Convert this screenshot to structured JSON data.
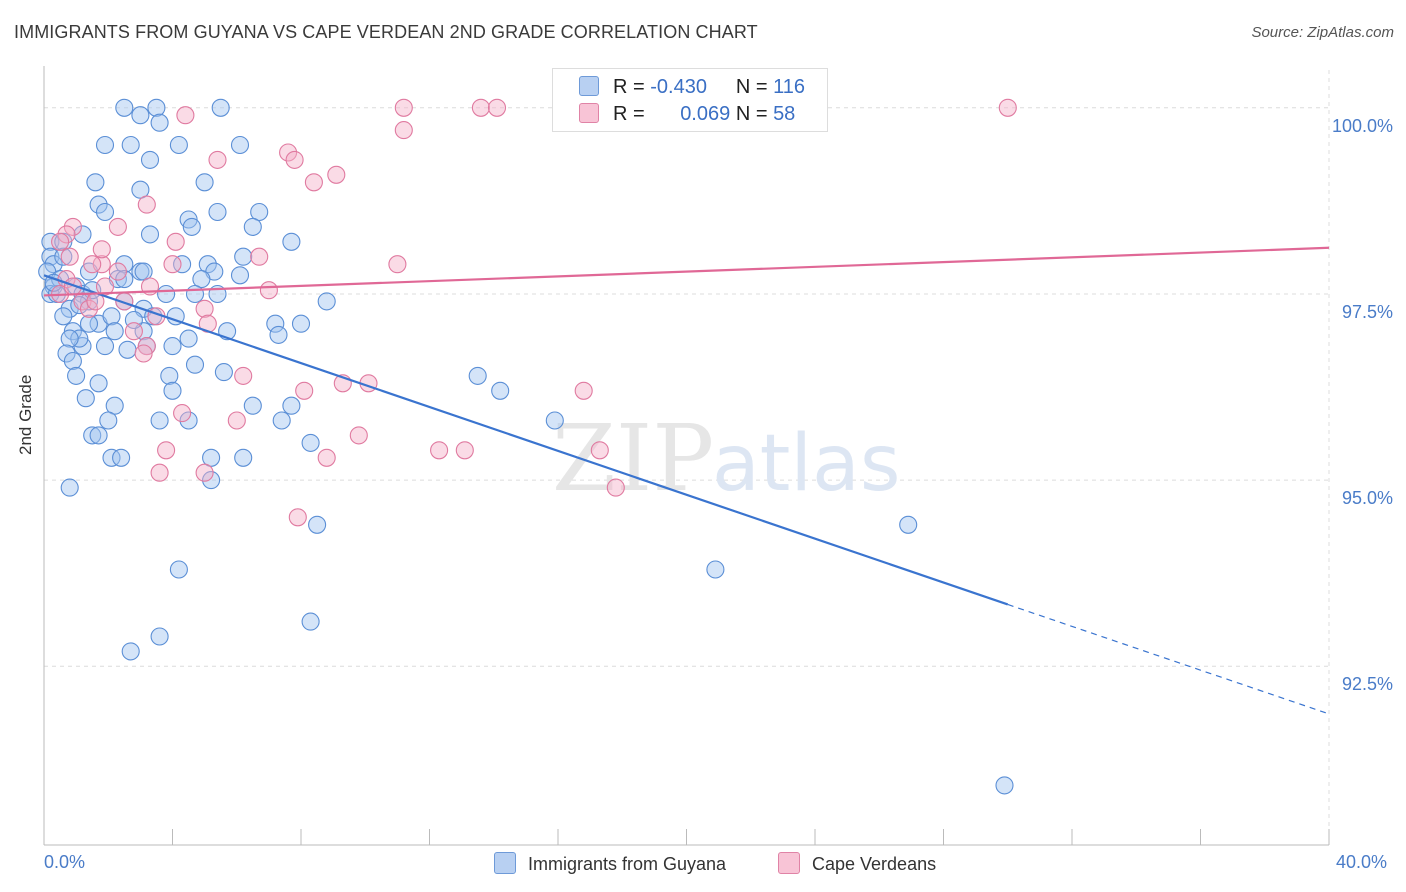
{
  "title": "IMMIGRANTS FROM GUYANA VS CAPE VERDEAN 2ND GRADE CORRELATION CHART",
  "source": "Source: ZipAtlas.com",
  "watermark": {
    "zip": "ZIP",
    "atlas": "atlas"
  },
  "legend_top": {
    "rows": [
      {
        "r_label": "R =",
        "r_value": "-0.430",
        "n_label": "N =",
        "n_value": "116"
      },
      {
        "r_label": "R =",
        "r_value": "0.069",
        "n_label": "N =",
        "n_value": "58"
      }
    ]
  },
  "chart_data": {
    "type": "scatter",
    "ylabel": "2nd Grade",
    "xlim": [
      0,
      40
    ],
    "ylim": [
      90.1,
      100.4
    ],
    "x_tick_labels": [
      "0.0%",
      "40.0%"
    ],
    "y_ticks": [
      {
        "value": 100,
        "label": "100.0%"
      },
      {
        "value": 97.5,
        "label": "97.5%"
      },
      {
        "value": 95,
        "label": "95.0%"
      },
      {
        "value": 92.5,
        "label": "92.5%"
      }
    ],
    "grid": true,
    "series": [
      {
        "name": "Immigrants from Guyana",
        "color": "#5b8fd6",
        "fill": "rgba(160,195,240,0.45)",
        "trend": {
          "x0": 0,
          "y0": 97.75,
          "x1": 30,
          "y1": 93.33,
          "dash_to_x": 40,
          "dash_to_y": 91.86
        },
        "points": [
          [
            2.5,
            100
          ],
          [
            3.5,
            100
          ],
          [
            5.5,
            100
          ],
          [
            3,
            99.9
          ],
          [
            3.6,
            99.8
          ],
          [
            1.9,
            99.5
          ],
          [
            2.7,
            99.5
          ],
          [
            4.2,
            99.5
          ],
          [
            6.1,
            99.5
          ],
          [
            3.3,
            99.3
          ],
          [
            1.6,
            99
          ],
          [
            5,
            99
          ],
          [
            3,
            98.9
          ],
          [
            1.7,
            98.7
          ],
          [
            1.9,
            98.6
          ],
          [
            5.4,
            98.6
          ],
          [
            6.7,
            98.6
          ],
          [
            4.5,
            98.5
          ],
          [
            6.5,
            98.4
          ],
          [
            4.6,
            98.4
          ],
          [
            1.2,
            98.3
          ],
          [
            3.3,
            98.3
          ],
          [
            7.7,
            98.2
          ],
          [
            0.2,
            98.2
          ],
          [
            0.6,
            98.2
          ],
          [
            0.2,
            98
          ],
          [
            6.2,
            98
          ],
          [
            0.3,
            97.9
          ],
          [
            0.6,
            98
          ],
          [
            2.5,
            97.9
          ],
          [
            4.3,
            97.9
          ],
          [
            5.1,
            97.9
          ],
          [
            0.1,
            97.8
          ],
          [
            1.4,
            97.8
          ],
          [
            3,
            97.8
          ],
          [
            3.1,
            97.8
          ],
          [
            5.3,
            97.8
          ],
          [
            0.3,
            97.6
          ],
          [
            0.5,
            97.7
          ],
          [
            2.3,
            97.7
          ],
          [
            2.5,
            97.7
          ],
          [
            4.9,
            97.7
          ],
          [
            1,
            97.6
          ],
          [
            1.2,
            97.5
          ],
          [
            0.2,
            97.5
          ],
          [
            0.4,
            97.5
          ],
          [
            3.8,
            97.5
          ],
          [
            4.7,
            97.5
          ],
          [
            5.4,
            97.5
          ],
          [
            8.8,
            97.4
          ],
          [
            1.4,
            97.4
          ],
          [
            2.5,
            97.4
          ],
          [
            0.8,
            97.3
          ],
          [
            3.1,
            97.3
          ],
          [
            3.4,
            97.2
          ],
          [
            0.6,
            97.2
          ],
          [
            4.1,
            97.2
          ],
          [
            1.7,
            97.1
          ],
          [
            2.1,
            97.2
          ],
          [
            1.4,
            97.1
          ],
          [
            8,
            97.1
          ],
          [
            7.2,
            97.1
          ],
          [
            0.9,
            97
          ],
          [
            2.2,
            97
          ],
          [
            3.1,
            97
          ],
          [
            5.7,
            97
          ],
          [
            3.2,
            96.8
          ],
          [
            4,
            96.8
          ],
          [
            1.2,
            96.8
          ],
          [
            1.9,
            96.8
          ],
          [
            1.1,
            96.9
          ],
          [
            0.8,
            96.9
          ],
          [
            0.7,
            96.7
          ],
          [
            0.9,
            96.6
          ],
          [
            1,
            96.4
          ],
          [
            3.9,
            96.4
          ],
          [
            13.5,
            96.4
          ],
          [
            1.7,
            96.3
          ],
          [
            4,
            96.2
          ],
          [
            14.2,
            96.2
          ],
          [
            1.3,
            96.1
          ],
          [
            2.2,
            96
          ],
          [
            6.5,
            96
          ],
          [
            7.7,
            96
          ],
          [
            2,
            95.8
          ],
          [
            3.6,
            95.8
          ],
          [
            4.5,
            95.8
          ],
          [
            7.4,
            95.8
          ],
          [
            15.9,
            95.8
          ],
          [
            1.5,
            95.6
          ],
          [
            1.7,
            95.6
          ],
          [
            8.3,
            95.5
          ],
          [
            5.2,
            95.3
          ],
          [
            2.1,
            95.3
          ],
          [
            2.4,
            95.3
          ],
          [
            6.2,
            95.3
          ],
          [
            5.2,
            95
          ],
          [
            0.8,
            94.9
          ],
          [
            8.5,
            94.4
          ],
          [
            26.9,
            94.4
          ],
          [
            4.2,
            93.8
          ],
          [
            20.9,
            93.8
          ],
          [
            8.3,
            93.1
          ],
          [
            3.6,
            92.9
          ],
          [
            2.7,
            92.7
          ],
          [
            29.9,
            90.9
          ],
          [
            0.3,
            97.65
          ],
          [
            1.1,
            97.35
          ],
          [
            2.6,
            96.75
          ],
          [
            4.5,
            96.9
          ],
          [
            6.1,
            97.75
          ],
          [
            7.3,
            96.95
          ],
          [
            4.7,
            96.55
          ],
          [
            1.5,
            97.55
          ],
          [
            2.8,
            97.15
          ],
          [
            5.6,
            96.45
          ]
        ]
      },
      {
        "name": "Cape Verdeans",
        "color": "#e07aa0",
        "fill": "rgba(245,175,200,0.45)",
        "trend": {
          "x0": 0,
          "y0": 97.48,
          "x1": 40,
          "y1": 98.12
        },
        "points": [
          [
            11.2,
            100
          ],
          [
            13.6,
            100
          ],
          [
            14.1,
            100
          ],
          [
            30,
            100
          ],
          [
            4.4,
            99.9
          ],
          [
            11.2,
            99.7
          ],
          [
            7.6,
            99.4
          ],
          [
            7.8,
            99.3
          ],
          [
            5.4,
            99.3
          ],
          [
            9.1,
            99.1
          ],
          [
            8.4,
            99
          ],
          [
            3.2,
            98.7
          ],
          [
            2.3,
            98.4
          ],
          [
            0.9,
            98.4
          ],
          [
            0.7,
            98.3
          ],
          [
            4.1,
            98.2
          ],
          [
            0.5,
            98.2
          ],
          [
            6.7,
            98
          ],
          [
            0.8,
            98
          ],
          [
            11,
            97.9
          ],
          [
            1.8,
            97.9
          ],
          [
            4,
            97.9
          ],
          [
            1.5,
            97.9
          ],
          [
            0.7,
            97.7
          ],
          [
            2.3,
            97.8
          ],
          [
            3.3,
            97.6
          ],
          [
            1.9,
            97.6
          ],
          [
            1.2,
            97.4
          ],
          [
            0.5,
            97.5
          ],
          [
            1.4,
            97.3
          ],
          [
            5,
            97.3
          ],
          [
            2.5,
            97.4
          ],
          [
            0.9,
            97.6
          ],
          [
            1.6,
            97.4
          ],
          [
            5.1,
            97.1
          ],
          [
            2.8,
            97
          ],
          [
            3.2,
            96.8
          ],
          [
            3.1,
            96.7
          ],
          [
            6.2,
            96.4
          ],
          [
            9.3,
            96.3
          ],
          [
            10.1,
            96.3
          ],
          [
            8.1,
            96.2
          ],
          [
            16.8,
            96.2
          ],
          [
            4.3,
            95.9
          ],
          [
            6,
            95.8
          ],
          [
            9.8,
            95.6
          ],
          [
            3.8,
            95.4
          ],
          [
            12.3,
            95.4
          ],
          [
            13.1,
            95.4
          ],
          [
            17.3,
            95.4
          ],
          [
            8.8,
            95.3
          ],
          [
            5,
            95.1
          ],
          [
            3.6,
            95.1
          ],
          [
            17.8,
            94.9
          ],
          [
            7.9,
            94.5
          ],
          [
            1.8,
            98.1
          ],
          [
            3.5,
            97.2
          ],
          [
            7.0,
            97.55
          ]
        ]
      }
    ]
  },
  "legend_bottom": {
    "items": [
      "Immigrants from Guyana",
      "Cape Verdeans"
    ]
  }
}
